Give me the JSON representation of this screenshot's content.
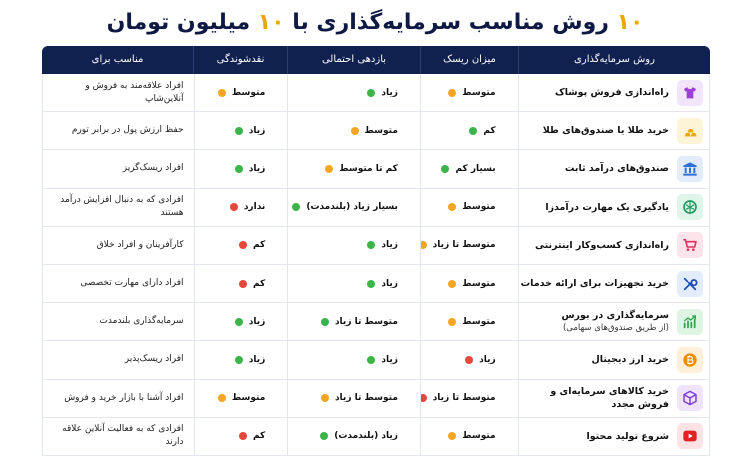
{
  "title": {
    "num1": "۱۰",
    "text1": " روش مناسب سرمایه‌گذاری با ",
    "num2": "۱۰",
    "text2": " میلیون تومان"
  },
  "colors": {
    "green": "#3bb54a",
    "orange": "#f5a524",
    "red": "#e5483a",
    "header_bg": "#10204f"
  },
  "headers": {
    "method": "روش سرمایه‌گذاری",
    "risk": "میزان ریسک",
    "return": "بازدهی احتمالی",
    "liquidity": "نقدشوندگی",
    "fit": "مناسب برای"
  },
  "rows": [
    {
      "icon": "tshirt-icon",
      "icon_bg": "#f1e4fb",
      "icon_color": "#9b3fd6",
      "method": "راه‌اندازی فروش پوشاک",
      "method_sub": "",
      "risk": "متوسط",
      "risk_level": "orange",
      "return": "زیاد",
      "return_level": "green",
      "liquidity": "متوسط",
      "liquidity_level": "orange",
      "fit": "افراد علاقه‌مند به فروش و آنلاین‌شاپ"
    },
    {
      "icon": "gold-bars-icon",
      "icon_bg": "#fdf3d6",
      "icon_color": "#e8a800",
      "method": "خرید طلا یا صندوق‌های طلا",
      "method_sub": "",
      "risk": "کم",
      "risk_level": "green",
      "return": "متوسط",
      "return_level": "orange",
      "liquidity": "زیاد",
      "liquidity_level": "green",
      "fit": "حفظ ارزش پول در برابر تورم"
    },
    {
      "icon": "bank-icon",
      "icon_bg": "#e2ecfb",
      "icon_color": "#2f6fd6",
      "method": "صندوق‌های درآمد ثابت",
      "method_sub": "",
      "risk": "بسیار کم",
      "risk_level": "green",
      "return": "کم تا متوسط",
      "return_level": "orange",
      "liquidity": "زیاد",
      "liquidity_level": "green",
      "fit": "افراد ریسک‌گریز"
    },
    {
      "icon": "brain-icon",
      "icon_bg": "#dff5ea",
      "icon_color": "#1f9d63",
      "method": "یادگیری یک مهارت درآمدزا",
      "method_sub": "",
      "risk": "متوسط",
      "risk_level": "orange",
      "return": "بسیار زیاد (بلندمدت)",
      "return_level": "green",
      "liquidity": "ندارد",
      "liquidity_level": "red",
      "fit": "افرادی که به دنبال افزایش درآمد هستند"
    },
    {
      "icon": "cart-icon",
      "icon_bg": "#fde3ea",
      "icon_color": "#e0305e",
      "method": "راه‌اندازی کسب‌وکار اینترنتی",
      "method_sub": "",
      "risk": "متوسط تا زیاد",
      "risk_level": "orange",
      "return": "زیاد",
      "return_level": "green",
      "liquidity": "کم",
      "liquidity_level": "red",
      "fit": "کارآفرینان و افراد خلاق"
    },
    {
      "icon": "tools-icon",
      "icon_bg": "#e2ecfb",
      "icon_color": "#1e4fb8",
      "method": "خرید تجهیزات برای ارائه خدمات",
      "method_sub": "",
      "risk": "متوسط",
      "risk_level": "orange",
      "return": "زیاد",
      "return_level": "green",
      "liquidity": "کم",
      "liquidity_level": "red",
      "fit": "افراد دارای مهارت تخصصی"
    },
    {
      "icon": "chart-up-icon",
      "icon_bg": "#dff5e4",
      "icon_color": "#2aa64a",
      "method": "سرمایه‌گذاری در بورس",
      "method_sub": "(از طریق صندوق‌های سهامی)",
      "risk": "متوسط",
      "risk_level": "orange",
      "return": "متوسط تا زیاد",
      "return_level": "green",
      "liquidity": "زیاد",
      "liquidity_level": "green",
      "fit": "سرمایه‌گذاری بلندمدت"
    },
    {
      "icon": "bitcoin-icon",
      "icon_bg": "#fdefd9",
      "icon_color": "#f08c00",
      "method": "خرید ارز دیجیتال",
      "method_sub": "",
      "risk": "زیاد",
      "risk_level": "red",
      "return": "زیاد",
      "return_level": "green",
      "liquidity": "زیاد",
      "liquidity_level": "green",
      "fit": "افراد ریسک‌پذیر"
    },
    {
      "icon": "box-icon",
      "icon_bg": "#efe4fb",
      "icon_color": "#7b3fd6",
      "method": "خرید کالاهای سرمایه‌ای و فروش مجدد",
      "method_sub": "",
      "risk": "متوسط تا زیاد",
      "risk_level": "red",
      "return": "متوسط تا زیاد",
      "return_level": "orange",
      "liquidity": "متوسط",
      "liquidity_level": "orange",
      "fit": "افراد آشنا با بازار خرید و فروش"
    },
    {
      "icon": "play-icon",
      "icon_bg": "#fde3e3",
      "icon_color": "#e02424",
      "method": "شروع تولید محتوا",
      "method_sub": "",
      "risk": "متوسط",
      "risk_level": "orange",
      "return": "زیاد (بلندمدت)",
      "return_level": "green",
      "liquidity": "کم",
      "liquidity_level": "red",
      "fit": "افرادی که به فعالیت آنلاین علاقه دارند"
    }
  ]
}
